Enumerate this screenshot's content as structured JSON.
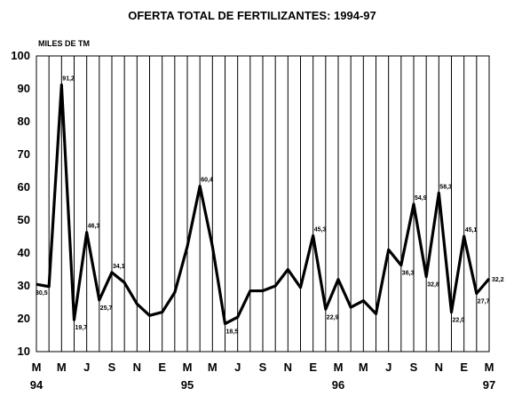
{
  "chart_data": {
    "type": "line",
    "title": "OFERTA TOTAL DE FERTILIZANTES: 1994-97",
    "ylabel": "MILES DE TM",
    "ylim": [
      10,
      100
    ],
    "yticks": [
      "10",
      "20",
      "30",
      "40",
      "50",
      "60",
      "70",
      "80",
      "90",
      "100"
    ],
    "grid": "vertical",
    "x_month_labels": [
      "M",
      "M",
      "J",
      "S",
      "N",
      "E",
      "M",
      "M",
      "J",
      "S",
      "N",
      "E",
      "M",
      "M",
      "J",
      "S",
      "N",
      "E",
      "M"
    ],
    "x_year_labels": [
      {
        "label": "94",
        "under": 0
      },
      {
        "label": "95",
        "under": 6
      },
      {
        "label": "96",
        "under": 12
      },
      {
        "label": "97",
        "under": 18
      }
    ],
    "series": [
      {
        "values": [
          30.5,
          29.8,
          91.2,
          19.7,
          46.3,
          25.7,
          34.1,
          31.0,
          24.5,
          21.0,
          22.0,
          28.0,
          42.0,
          60.4,
          42.0,
          18.5,
          20.5,
          28.5,
          28.5,
          30.0,
          35.0,
          29.5,
          45.3,
          22.9,
          32.0,
          23.5,
          25.5,
          21.5,
          41.0,
          36.3,
          54.9,
          32.8,
          58.3,
          22.0,
          45.1,
          27.7,
          32.2
        ]
      }
    ],
    "data_labels": [
      {
        "index": 0,
        "text": "30,5"
      },
      {
        "index": 2,
        "text": "91,2"
      },
      {
        "index": 3,
        "text": "19,7"
      },
      {
        "index": 4,
        "text": "46,3"
      },
      {
        "index": 5,
        "text": "25,7"
      },
      {
        "index": 6,
        "text": "34,1"
      },
      {
        "index": 13,
        "text": "60,4"
      },
      {
        "index": 15,
        "text": "18,5"
      },
      {
        "index": 22,
        "text": "45,3"
      },
      {
        "index": 23,
        "text": "22,9"
      },
      {
        "index": 29,
        "text": "36,3"
      },
      {
        "index": 30,
        "text": "54,9"
      },
      {
        "index": 31,
        "text": "32,8"
      },
      {
        "index": 32,
        "text": "58,3"
      },
      {
        "index": 33,
        "text": "22,0"
      },
      {
        "index": 34,
        "text": "45,1"
      },
      {
        "index": 35,
        "text": "27,7"
      },
      {
        "index": 36,
        "text": "32,2"
      }
    ]
  }
}
